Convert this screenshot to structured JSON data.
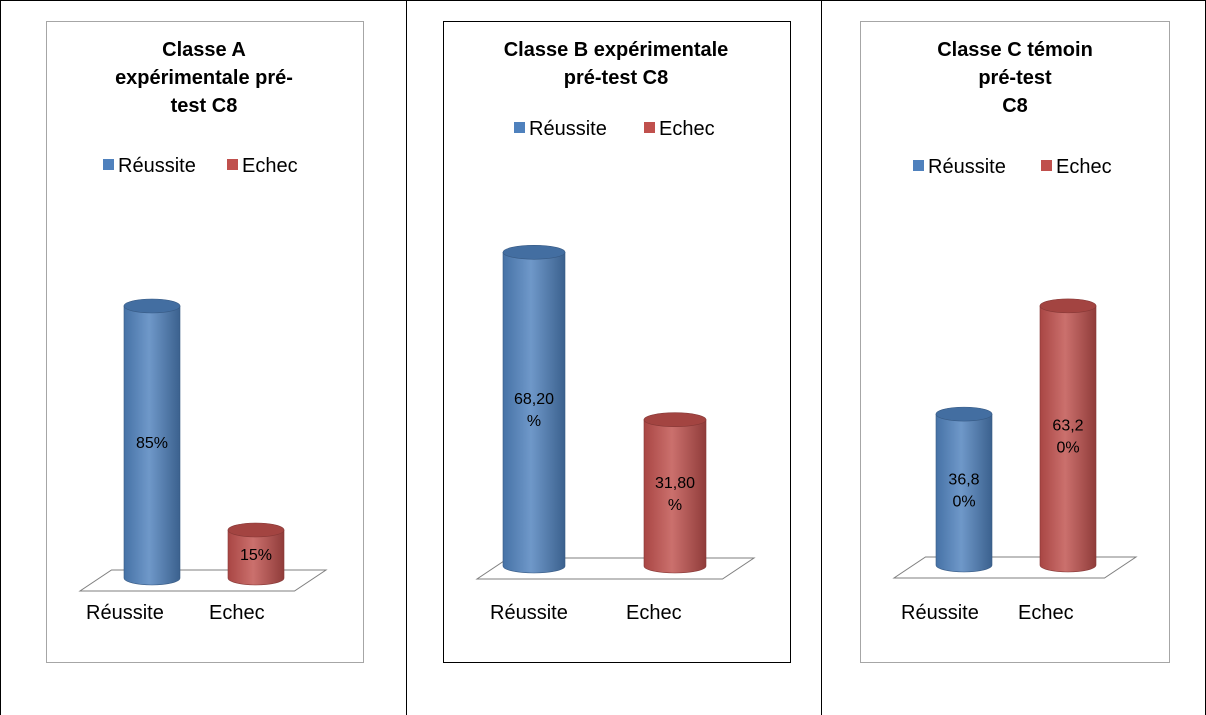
{
  "colors": {
    "success": "#4F81BD",
    "failure": "#C0504D"
  },
  "chart_data": [
    {
      "type": "bar",
      "title": [
        "Classe A",
        "expérimentale pré-",
        "test C8"
      ],
      "categories": [
        "Réussite",
        "Echec"
      ],
      "legend": [
        "Réussite",
        "Echec"
      ],
      "values": [
        85,
        15
      ],
      "data_labels": [
        [
          "85%"
        ],
        [
          "15%"
        ]
      ],
      "ylim": [
        0,
        100
      ],
      "legend_position": "top"
    },
    {
      "type": "bar",
      "title": [
        "Classe B expérimentale",
        "pré-test C8"
      ],
      "categories": [
        "Réussite",
        "Echec"
      ],
      "legend": [
        "Réussite",
        "Echec"
      ],
      "values": [
        68.2,
        31.8
      ],
      "data_labels": [
        [
          "68,20",
          "%"
        ],
        [
          "31,80",
          "%"
        ]
      ],
      "ylim": [
        0,
        100
      ],
      "legend_position": "top"
    },
    {
      "type": "bar",
      "title": [
        "Classe C témoin",
        "pré-test",
        "C8"
      ],
      "categories": [
        "Réussite",
        "Echec"
      ],
      "legend": [
        "Réussite",
        "Echec"
      ],
      "values": [
        36.8,
        63.2
      ],
      "data_labels": [
        [
          "36,8",
          "0%"
        ],
        [
          "63,2",
          "0%"
        ]
      ],
      "ylim": [
        0,
        100
      ],
      "legend_position": "top"
    }
  ]
}
